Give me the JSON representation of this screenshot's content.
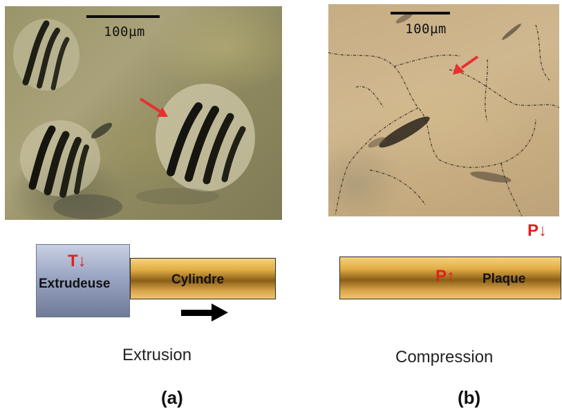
{
  "panel_a": {
    "scale_label": "100µm",
    "extruder_label": "Extrudeuse",
    "temperature_label": "T↓",
    "cylinder_label": "Cylindre",
    "process_caption": "Extrusion",
    "panel_label": "(a)"
  },
  "panel_b": {
    "scale_label": "100µm",
    "pressure_top_label": "P↓",
    "pressure_plate_label": "P↑",
    "plate_label": "Plaque",
    "process_caption": "Compression",
    "panel_label": "(b)"
  },
  "colors": {
    "arrow_red": "#e83030",
    "label_red": "#e02020"
  },
  "icons": {
    "pointer_arrow": "red-arrow-icon",
    "direction_arrow": "right-arrow-icon"
  }
}
